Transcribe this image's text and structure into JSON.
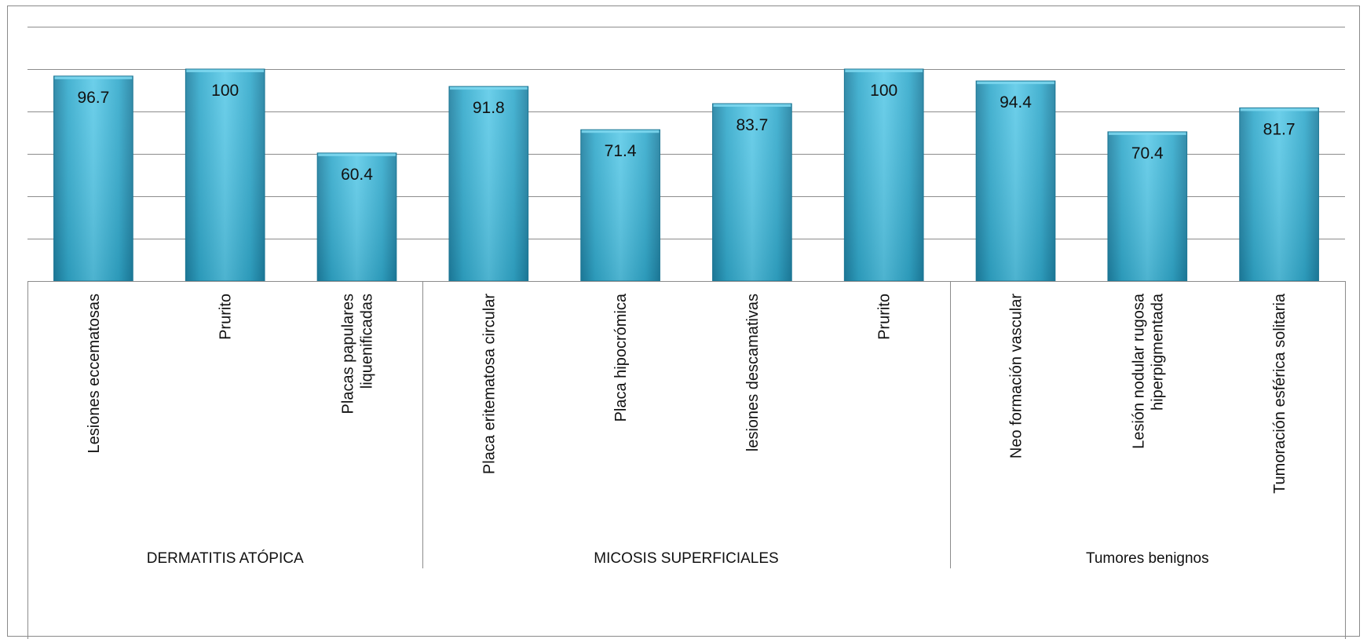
{
  "chart_data": {
    "type": "bar",
    "title": "",
    "xlabel": "",
    "ylabel": "",
    "ylim": [
      0,
      120
    ],
    "grid": true,
    "y_gridline_step": 20,
    "y_tick_labels_shown": false,
    "legend": "none",
    "bar_color": "#33AACC",
    "bar_color_light": "#5CCAE8",
    "bar_color_dark": "#1E7FA0",
    "groups": [
      {
        "name": "DERMATITIS ATÓPICA",
        "categories": [
          "Lesiones eccematosas",
          "Prurito",
          "Placas papulares liquenificadas"
        ],
        "values": [
          96.7,
          100,
          60.4
        ]
      },
      {
        "name": "MICOSIS SUPERFICIALES",
        "categories": [
          "Placa eritematosa circular",
          "Placa hipocrómica",
          "lesiones descamativas",
          "Prurito"
        ],
        "values": [
          91.8,
          71.4,
          83.7,
          100
        ]
      },
      {
        "name": "Tumores benignos",
        "categories": [
          "Neo formación vascular",
          "Lesión nodular rugosa hiperpigmentada",
          "Tumoración esférica solitaria"
        ],
        "values": [
          94.4,
          70.4,
          81.7
        ]
      }
    ]
  }
}
